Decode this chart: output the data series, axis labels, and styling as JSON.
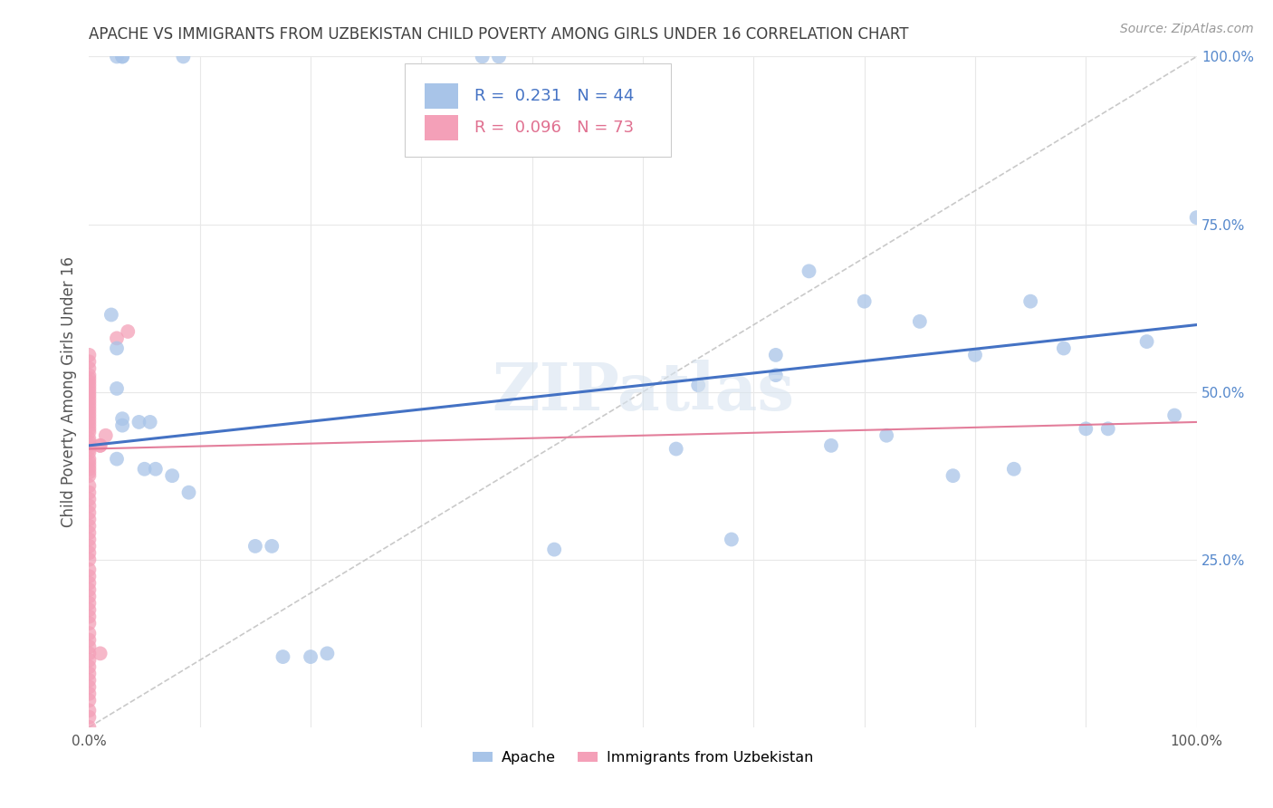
{
  "title": "APACHE VS IMMIGRANTS FROM UZBEKISTAN CHILD POVERTY AMONG GIRLS UNDER 16 CORRELATION CHART",
  "source": "Source: ZipAtlas.com",
  "ylabel": "Child Poverty Among Girls Under 16",
  "watermark": "ZIPatlas",
  "apache_R": 0.231,
  "apache_N": 44,
  "uzbek_R": 0.096,
  "uzbek_N": 73,
  "apache_color": "#a8c4e8",
  "uzbek_color": "#f4a0b8",
  "apache_line_color": "#4472c4",
  "uzbek_line_color": "#e07090",
  "diag_line_color": "#c0c0c0",
  "grid_color": "#e8e8e8",
  "title_color": "#404040",
  "right_tick_color": "#5588cc",
  "apache_x": [
    0.025,
    0.03,
    0.03,
    0.085,
    0.355,
    0.37,
    0.02,
    0.025,
    0.045,
    0.055,
    0.03,
    0.03,
    0.025,
    0.025,
    0.05,
    0.06,
    0.075,
    0.09,
    0.15,
    0.2,
    0.55,
    0.62,
    0.65,
    0.7,
    0.75,
    0.8,
    0.85,
    0.88,
    0.9,
    0.92,
    0.955,
    0.98,
    1.0,
    0.62,
    0.67,
    0.72,
    0.53,
    0.58,
    0.78,
    0.835,
    0.42,
    0.165,
    0.175,
    0.215
  ],
  "apache_y": [
    1.0,
    1.0,
    1.0,
    1.0,
    1.0,
    1.0,
    0.615,
    0.565,
    0.455,
    0.455,
    0.45,
    0.46,
    0.505,
    0.4,
    0.385,
    0.385,
    0.375,
    0.35,
    0.27,
    0.105,
    0.51,
    0.525,
    0.68,
    0.635,
    0.605,
    0.555,
    0.635,
    0.565,
    0.445,
    0.445,
    0.575,
    0.465,
    0.76,
    0.555,
    0.42,
    0.435,
    0.415,
    0.28,
    0.375,
    0.385,
    0.265,
    0.27,
    0.105,
    0.11
  ],
  "uzbek_x": [
    0.0,
    0.0,
    0.0,
    0.0,
    0.0,
    0.0,
    0.0,
    0.0,
    0.0,
    0.0,
    0.0,
    0.0,
    0.0,
    0.0,
    0.0,
    0.0,
    0.0,
    0.0,
    0.0,
    0.0,
    0.0,
    0.0,
    0.0,
    0.0,
    0.0,
    0.0,
    0.0,
    0.0,
    0.0,
    0.0,
    0.0,
    0.0,
    0.0,
    0.0,
    0.0,
    0.0,
    0.0,
    0.0,
    0.0,
    0.0,
    0.0,
    0.0,
    0.0,
    0.0,
    0.0,
    0.0,
    0.0,
    0.0,
    0.0,
    0.0,
    0.0,
    0.0,
    0.0,
    0.0,
    0.0,
    0.0,
    0.0,
    0.0,
    0.0,
    0.0,
    0.0,
    0.0,
    0.0,
    0.0,
    0.0,
    0.0,
    0.0,
    0.01,
    0.015,
    0.025,
    0.035,
    0.01,
    0.01
  ],
  "uzbek_y": [
    0.0,
    0.015,
    0.025,
    0.04,
    0.05,
    0.06,
    0.07,
    0.08,
    0.09,
    0.1,
    0.11,
    0.12,
    0.13,
    0.14,
    0.155,
    0.165,
    0.175,
    0.185,
    0.195,
    0.205,
    0.215,
    0.225,
    0.235,
    0.25,
    0.26,
    0.27,
    0.28,
    0.29,
    0.3,
    0.31,
    0.32,
    0.33,
    0.34,
    0.35,
    0.36,
    0.375,
    0.385,
    0.395,
    0.41,
    0.42,
    0.43,
    0.44,
    0.455,
    0.465,
    0.475,
    0.485,
    0.495,
    0.505,
    0.515,
    0.52,
    0.38,
    0.39,
    0.4,
    0.415,
    0.425,
    0.445,
    0.45,
    0.46,
    0.47,
    0.48,
    0.49,
    0.5,
    0.51,
    0.525,
    0.535,
    0.545,
    0.555,
    0.42,
    0.435,
    0.58,
    0.59,
    0.42,
    0.11
  ],
  "apache_line_x": [
    0.0,
    1.0
  ],
  "apache_line_y": [
    0.42,
    0.6
  ],
  "uzbek_line_x": [
    0.0,
    1.0
  ],
  "uzbek_line_y": [
    0.415,
    0.455
  ],
  "xlim": [
    0.0,
    1.0
  ],
  "ylim": [
    0.0,
    1.0
  ],
  "xticks": [
    0.0,
    0.5,
    1.0
  ],
  "xticklabels": [
    "0.0%",
    "",
    "100.0%"
  ],
  "yticks_right": [
    0.25,
    0.5,
    0.75,
    1.0
  ],
  "yticklabels_right": [
    "25.0%",
    "50.0%",
    "75.0%",
    "100.0%"
  ],
  "hgrid_vals": [
    0.25,
    0.5,
    0.75,
    1.0
  ],
  "vgrid_vals": [
    0.1,
    0.2,
    0.3,
    0.4,
    0.5,
    0.6,
    0.7,
    0.8,
    0.9,
    1.0
  ]
}
